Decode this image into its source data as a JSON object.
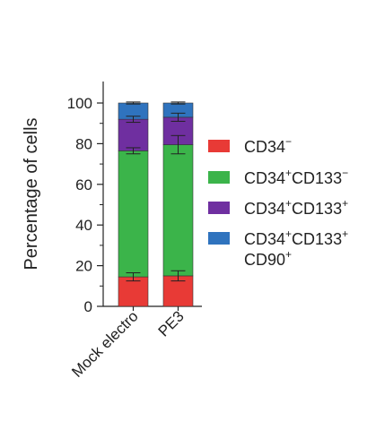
{
  "chart_data": {
    "type": "bar",
    "stacked": true,
    "title": "",
    "xlabel": "",
    "ylabel": "Percentage of cells",
    "ylim": [
      0,
      100
    ],
    "yticks": [
      0,
      20,
      40,
      60,
      80,
      100
    ],
    "ytick_labels": [
      "0",
      "20",
      "40",
      "60",
      "80",
      "100"
    ],
    "categories": [
      "Mock electro",
      "PE3"
    ],
    "grid": false,
    "legend_position": "right",
    "series": [
      {
        "key": "cd34neg",
        "name_base": "CD34",
        "name_sup": "−",
        "color": "#e83a36",
        "values": [
          14.5,
          15.0
        ],
        "error": [
          2.0,
          2.5
        ]
      },
      {
        "key": "cd34pos_cd133neg",
        "name_base": "CD34",
        "name_sup": "+",
        "name_base2": "CD133",
        "name_sup2": "−",
        "color": "#3bb44a",
        "values": [
          62.0,
          64.5
        ],
        "error": [
          1.5,
          4.5
        ]
      },
      {
        "key": "cd34pos_cd133pos",
        "name_base": "CD34",
        "name_sup": "+",
        "name_base2": "CD133",
        "name_sup2": "+",
        "color": "#6f2fa0",
        "values": [
          15.5,
          13.5
        ],
        "error": [
          1.5,
          2.0
        ]
      },
      {
        "key": "cd34pos_cd133pos_cd90pos",
        "name_base": "CD34",
        "name_sup": "+",
        "name_base2": "CD133",
        "name_sup2": "+",
        "name_line2_base": "CD90",
        "name_line2_sup": "+",
        "color": "#2f73be",
        "values": [
          8.0,
          7.0
        ],
        "error": [
          0.5,
          0.5
        ]
      }
    ]
  }
}
